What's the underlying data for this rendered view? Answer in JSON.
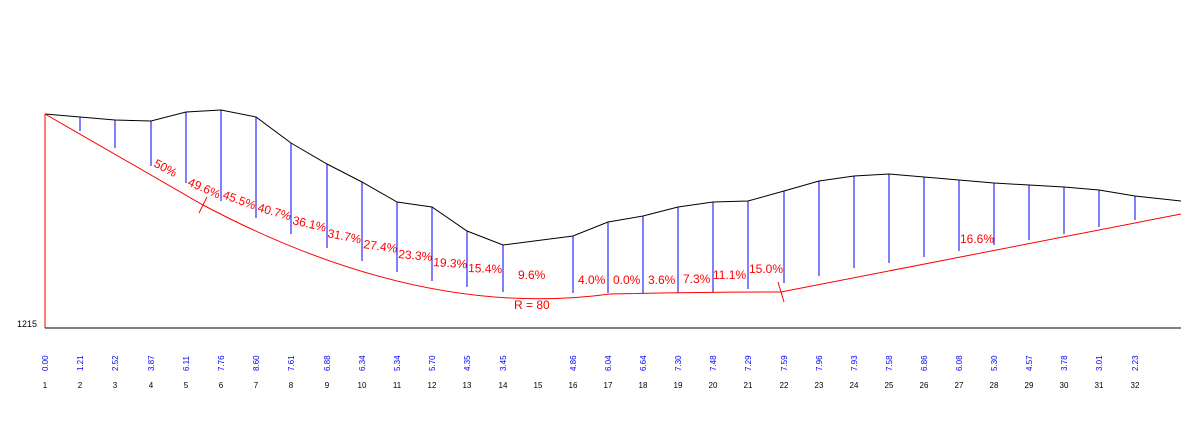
{
  "elevation_label": "1215",
  "radius_label": "R = 80",
  "colors": {
    "terrain": "#000000",
    "design": "#ff0000",
    "verticals": "#0000ff",
    "depth_text": "#0000ff",
    "grade_text": "#ff0000",
    "station_text": "#000000"
  },
  "stations": [
    {
      "n": "1",
      "depth": "0.00"
    },
    {
      "n": "2",
      "depth": "1.21"
    },
    {
      "n": "3",
      "depth": "2.52"
    },
    {
      "n": "4",
      "depth": "3.87"
    },
    {
      "n": "5",
      "depth": "6.11"
    },
    {
      "n": "6",
      "depth": "7.76"
    },
    {
      "n": "7",
      "depth": "8.60"
    },
    {
      "n": "8",
      "depth": "7.61"
    },
    {
      "n": "9",
      "depth": "6.88"
    },
    {
      "n": "10",
      "depth": "6.34"
    },
    {
      "n": "11",
      "depth": "5.34"
    },
    {
      "n": "12",
      "depth": "5.70"
    },
    {
      "n": "13",
      "depth": "4.35"
    },
    {
      "n": "14",
      "depth": "3.45"
    },
    {
      "n": "15",
      "depth": ""
    },
    {
      "n": "16",
      "depth": "4.86"
    },
    {
      "n": "17",
      "depth": "6.04"
    },
    {
      "n": "18",
      "depth": "6.64"
    },
    {
      "n": "19",
      "depth": "7.30"
    },
    {
      "n": "20",
      "depth": "7.48"
    },
    {
      "n": "21",
      "depth": "7.29"
    },
    {
      "n": "22",
      "depth": "7.59"
    },
    {
      "n": "23",
      "depth": "7.96"
    },
    {
      "n": "24",
      "depth": "7.93"
    },
    {
      "n": "25",
      "depth": "7.58"
    },
    {
      "n": "26",
      "depth": "6.86"
    },
    {
      "n": "27",
      "depth": "6.08"
    },
    {
      "n": "28",
      "depth": "5.30"
    },
    {
      "n": "29",
      "depth": "4.57"
    },
    {
      "n": "30",
      "depth": "3.78"
    },
    {
      "n": "31",
      "depth": "3.01"
    },
    {
      "n": "32",
      "depth": "2.23"
    }
  ],
  "grades": [
    {
      "text": "50%"
    },
    {
      "text": "49.6%"
    },
    {
      "text": "45.5%"
    },
    {
      "text": "40.7%"
    },
    {
      "text": "36.1%"
    },
    {
      "text": "31.7%"
    },
    {
      "text": "27.4%"
    },
    {
      "text": "23.3%"
    },
    {
      "text": "19.3%"
    },
    {
      "text": "15.4%"
    },
    {
      "text": "9.6%"
    },
    {
      "text": "4.0%"
    },
    {
      "text": "0.0%"
    },
    {
      "text": "3.6%"
    },
    {
      "text": "7.3%"
    },
    {
      "text": "11.1%"
    },
    {
      "text": "15.0%"
    },
    {
      "text": "16.6%"
    }
  ]
}
